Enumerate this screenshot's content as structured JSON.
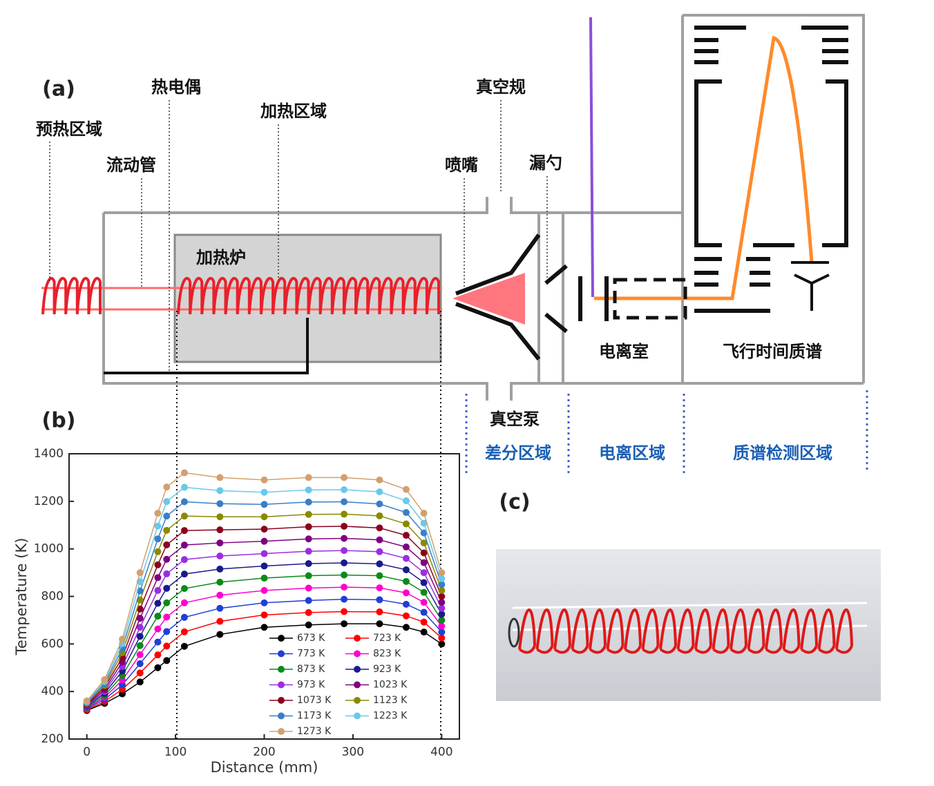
{
  "panel_labels": [
    "(a)",
    "(b)",
    "(c)"
  ],
  "diagram": {
    "labels": [
      "预热区域",
      "流动管",
      "热电偶",
      "加热区域",
      "加热炉",
      "真空规",
      "喷嘴",
      "漏勺",
      "电离室",
      "飞行时间质谱",
      "真空泵"
    ],
    "regions": [
      "差分区域",
      "电离区域",
      "质谱检测区域"
    ]
  },
  "chart_data": {
    "type": "line",
    "xlabel": "Distance (mm)",
    "ylabel": "Temperature (K)",
    "x": [
      0,
      20,
      40,
      60,
      80,
      90,
      110,
      150,
      200,
      250,
      290,
      330,
      360,
      380,
      400
    ],
    "xlim": [
      -20,
      420
    ],
    "ylim": [
      200,
      1400
    ],
    "xticks": [
      0,
      100,
      200,
      300,
      400
    ],
    "yticks": [
      200,
      400,
      600,
      800,
      1000,
      1200,
      1400
    ],
    "legend": "lower right",
    "series": [
      {
        "name": "673 K",
        "color": "#000000",
        "values": [
          320,
          350,
          390,
          440,
          500,
          530,
          590,
          640,
          670,
          680,
          685,
          685,
          670,
          650,
          600
        ]
      },
      {
        "name": "723 K",
        "color": "#ff0000",
        "values": [
          323,
          358,
          409,
          478,
          554,
          591,
          651,
          695,
          722,
          732,
          736,
          735,
          718,
          692,
          625
        ]
      },
      {
        "name": "773 K",
        "color": "#1f3fd6",
        "values": [
          327,
          367,
          428,
          517,
          608,
          652,
          712,
          750,
          773,
          783,
          788,
          786,
          767,
          733,
          650
        ]
      },
      {
        "name": "823 K",
        "color": "#ff00cc",
        "values": [
          330,
          375,
          448,
          555,
          663,
          713,
          773,
          805,
          825,
          835,
          839,
          836,
          815,
          775,
          675
        ]
      },
      {
        "name": "873 K",
        "color": "#0a8a1a",
        "values": [
          333,
          383,
          467,
          593,
          717,
          773,
          833,
          860,
          877,
          887,
          890,
          887,
          863,
          817,
          700
        ]
      },
      {
        "name": "923 K",
        "color": "#1a1a8c",
        "values": [
          337,
          392,
          486,
          632,
          771,
          834,
          894,
          915,
          928,
          938,
          941,
          937,
          912,
          858,
          725
        ]
      },
      {
        "name": "973 K",
        "color": "#9b2ee0",
        "values": [
          340,
          400,
          505,
          670,
          825,
          895,
          955,
          970,
          980,
          990,
          993,
          988,
          960,
          900,
          750
        ]
      },
      {
        "name": "1023 K",
        "color": "#800080",
        "values": [
          343,
          408,
          524,
          708,
          879,
          956,
          1016,
          1025,
          1032,
          1042,
          1044,
          1038,
          1008,
          942,
          775
        ]
      },
      {
        "name": "1073 K",
        "color": "#8b0020",
        "values": [
          347,
          417,
          543,
          747,
          933,
          1017,
          1077,
          1080,
          1083,
          1093,
          1095,
          1088,
          1057,
          983,
          800
        ]
      },
      {
        "name": "1123 K",
        "color": "#8a8a00",
        "values": [
          350,
          425,
          563,
          785,
          988,
          1078,
          1138,
          1135,
          1135,
          1145,
          1146,
          1139,
          1105,
          1025,
          825
        ]
      },
      {
        "name": "1173 K",
        "color": "#3a7ec8",
        "values": [
          353,
          433,
          582,
          823,
          1042,
          1138,
          1198,
          1190,
          1187,
          1197,
          1198,
          1189,
          1153,
          1067,
          850
        ]
      },
      {
        "name": "1223 K",
        "color": "#6ac8ea",
        "values": [
          357,
          442,
          601,
          862,
          1096,
          1199,
          1259,
          1245,
          1238,
          1248,
          1249,
          1240,
          1202,
          1108,
          875
        ]
      },
      {
        "name": "1273 K",
        "color": "#d2a06e",
        "values": [
          360,
          450,
          620,
          900,
          1150,
          1260,
          1320,
          1300,
          1290,
          1300,
          1300,
          1290,
          1250,
          1150,
          900
        ]
      }
    ]
  }
}
